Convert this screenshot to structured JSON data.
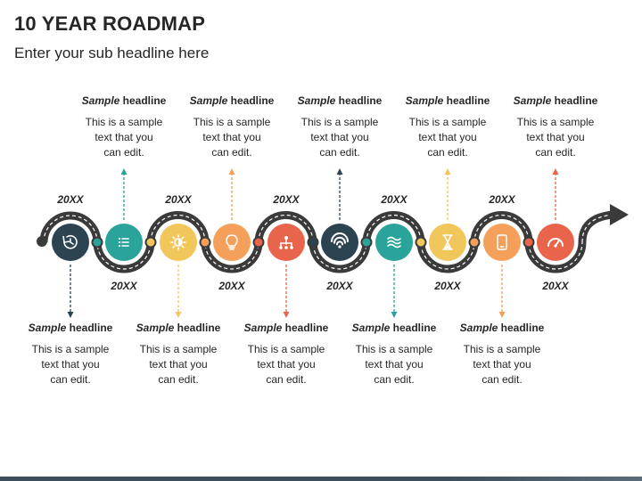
{
  "page": {
    "title": "10 YEAR ROADMAP",
    "subtitle": "Enter your sub headline here"
  },
  "steps": [
    {
      "icon": "history-icon",
      "color": "#2c4452",
      "year": "20XX",
      "headline_em": "Sample",
      "headline_rest": " headline",
      "text_l1": "This is a sample",
      "text_l2": "text that you",
      "text_l3": "can edit."
    },
    {
      "icon": "list-icon",
      "color": "#2aa39a",
      "year": "20XX",
      "headline_em": "Sample",
      "headline_rest": " headline",
      "text_l1": "This is a sample",
      "text_l2": "text that you",
      "text_l3": "can edit."
    },
    {
      "icon": "sun-icon",
      "color": "#f1c75b",
      "year": "20XX",
      "headline_em": "Sample",
      "headline_rest": " headline",
      "text_l1": "This is a sample",
      "text_l2": "text that you",
      "text_l3": "can edit."
    },
    {
      "icon": "bulb-icon",
      "color": "#f5a05a",
      "year": "20XX",
      "headline_em": "Sample",
      "headline_rest": " headline",
      "text_l1": "This is a sample",
      "text_l2": "text that you",
      "text_l3": "can edit."
    },
    {
      "icon": "network-icon",
      "color": "#e8654c",
      "year": "20XX",
      "headline_em": "Sample",
      "headline_rest": " headline",
      "text_l1": "This is a sample",
      "text_l2": "text that you",
      "text_l3": "can edit."
    },
    {
      "icon": "wifi-icon",
      "color": "#2c4452",
      "year": "20XX",
      "headline_em": "Sample",
      "headline_rest": " headline",
      "text_l1": "This is a sample",
      "text_l2": "text that you",
      "text_l3": "can edit."
    },
    {
      "icon": "waves-icon",
      "color": "#2aa39a",
      "year": "20XX",
      "headline_em": "Sample",
      "headline_rest": " headline",
      "text_l1": "This is a sample",
      "text_l2": "text that you",
      "text_l3": "can edit."
    },
    {
      "icon": "hourglass-icon",
      "color": "#f1c75b",
      "year": "20XX",
      "headline_em": "Sample",
      "headline_rest": " headline",
      "text_l1": "This is a sample",
      "text_l2": "text that you",
      "text_l3": "can edit."
    },
    {
      "icon": "tablet-icon",
      "color": "#f5a05a",
      "year": "20XX",
      "headline_em": "Sample",
      "headline_rest": " headline",
      "text_l1": "This is a sample",
      "text_l2": "text that you",
      "text_l3": "can edit."
    },
    {
      "icon": "gauge-icon",
      "color": "#e8654c",
      "year": "20XX",
      "headline_em": "Sample",
      "headline_rest": " headline",
      "text_l1": "This is a sample",
      "text_l2": "text that you",
      "text_l3": "can edit."
    }
  ],
  "road": {
    "color": "#3a3a3a",
    "dash_color": "#ffffff"
  }
}
